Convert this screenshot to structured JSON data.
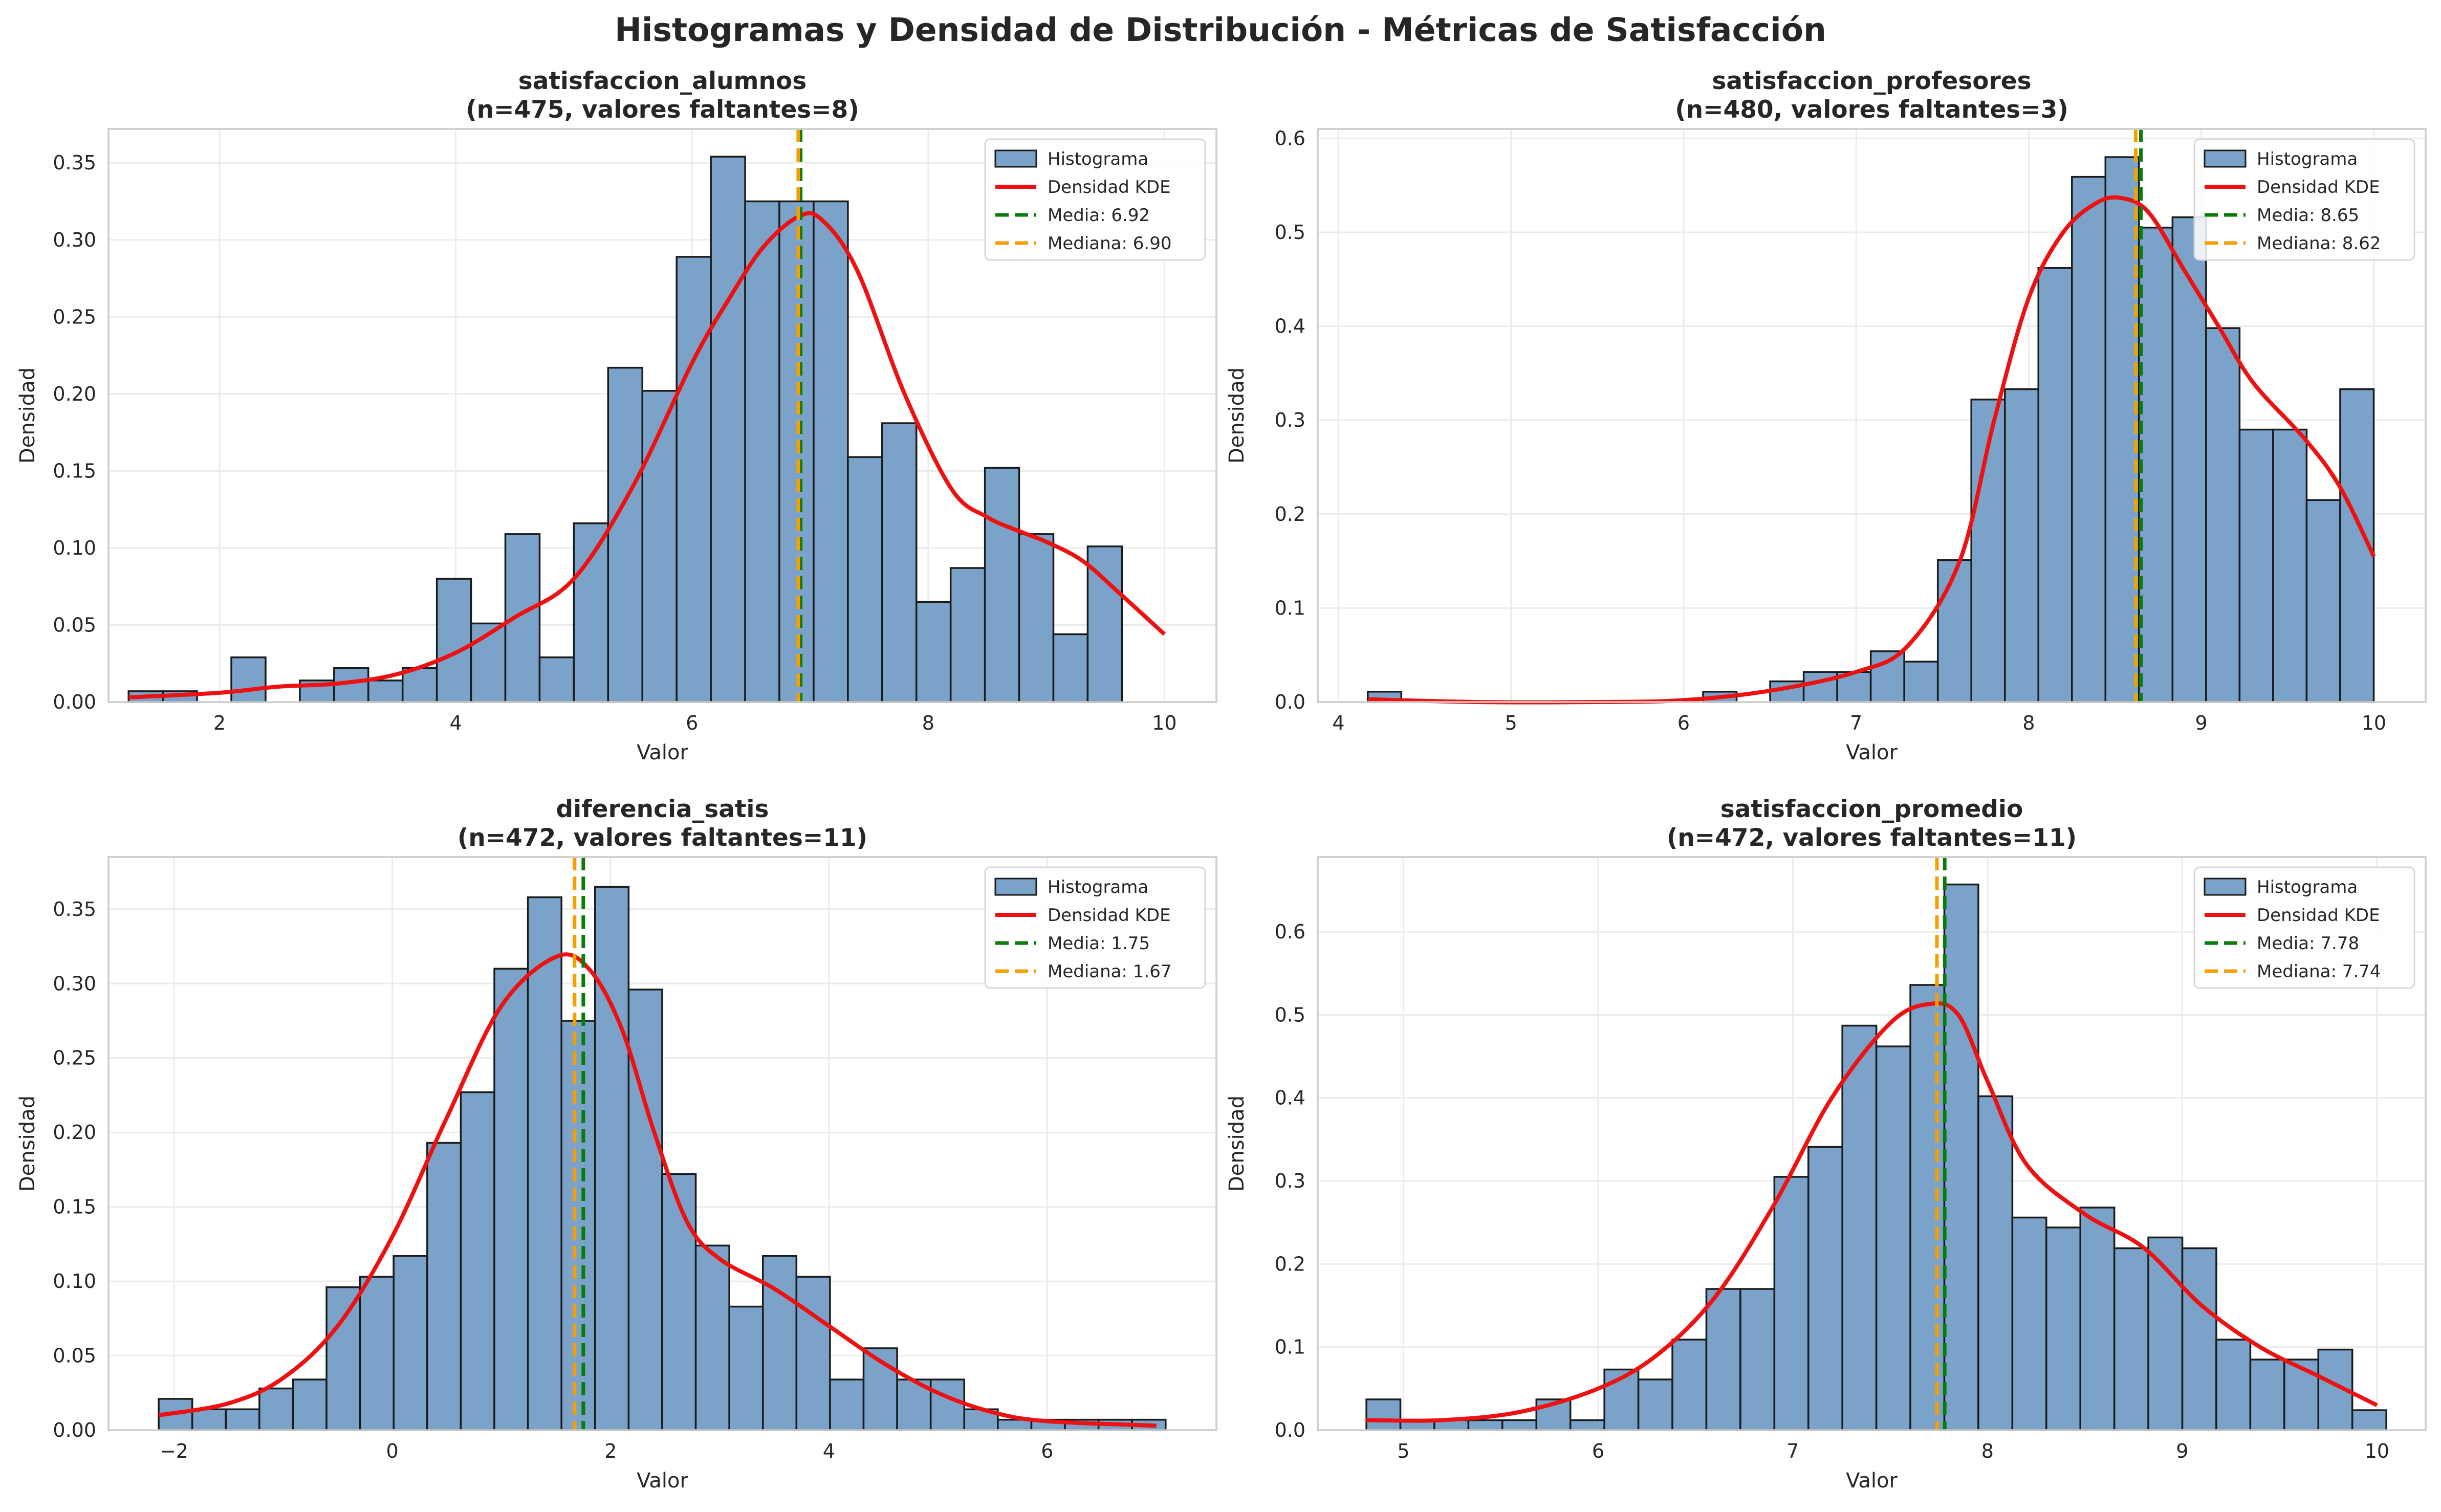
{
  "figure": {
    "title": "Histogramas y Densidad de Distribución - Métricas de Satisfacción"
  },
  "chart_data": [
    {
      "type": "bar",
      "title": "satisfaccion_alumnos\n(n=475, valores faltantes=8)",
      "title_lines": [
        "satisfaccion_alumnos",
        "(n=475, valores faltantes=8)"
      ],
      "xlabel": "Valor",
      "ylabel": "Densidad",
      "xlim": [
        1.06,
        10.44
      ],
      "ylim": [
        0,
        0.372
      ],
      "xticks": [
        2,
        4,
        6,
        8,
        10
      ],
      "yticks": [
        0.0,
        0.05,
        0.1,
        0.15,
        0.2,
        0.25,
        0.3,
        0.35
      ],
      "ytick_labels": [
        "0.00",
        "0.05",
        "0.10",
        "0.15",
        "0.20",
        "0.25",
        "0.30",
        "0.35"
      ],
      "bin_start": 1.23,
      "bin_width": 0.29,
      "values": [
        0.007,
        0.007,
        0.0,
        0.029,
        0.0,
        0.014,
        0.022,
        0.014,
        0.022,
        0.08,
        0.051,
        0.109,
        0.029,
        0.116,
        0.217,
        0.202,
        0.289,
        0.354,
        0.325,
        0.325,
        0.325,
        0.159,
        0.181,
        0.065,
        0.087,
        0.152,
        0.109,
        0.044,
        0.101
      ],
      "kde": {
        "x": [
          1.23,
          2.0,
          2.5,
          3.0,
          3.5,
          4.0,
          4.5,
          5.0,
          5.5,
          6.0,
          6.3,
          6.6,
          6.9,
          7.1,
          7.4,
          7.8,
          8.2,
          8.5,
          8.8,
          9.0,
          9.3,
          9.6,
          10.0
        ],
        "y": [
          0.003,
          0.006,
          0.01,
          0.012,
          0.018,
          0.032,
          0.055,
          0.08,
          0.14,
          0.22,
          0.26,
          0.295,
          0.315,
          0.313,
          0.28,
          0.2,
          0.138,
          0.12,
          0.11,
          0.104,
          0.092,
          0.072,
          0.044
        ]
      },
      "mean": 6.92,
      "median": 6.9,
      "legend": [
        "Histograma",
        "Densidad KDE",
        "Media: 6.92",
        "Mediana: 6.90"
      ],
      "legend_position": "upper right",
      "grid": true
    },
    {
      "type": "bar",
      "title": "satisfaccion_profesores\n(n=480, valores faltantes=3)",
      "title_lines": [
        "satisfaccion_profesores",
        "(n=480, valores faltantes=3)"
      ],
      "xlabel": "Valor",
      "ylabel": "Densidad",
      "xlim": [
        3.88,
        10.3
      ],
      "ylim": [
        0,
        0.61
      ],
      "xticks": [
        4,
        5,
        6,
        7,
        8,
        9,
        10
      ],
      "yticks": [
        0.0,
        0.1,
        0.2,
        0.3,
        0.4,
        0.5,
        0.6
      ],
      "ytick_labels": [
        "0.0",
        "0.1",
        "0.2",
        "0.3",
        "0.4",
        "0.5",
        "0.6"
      ],
      "bin_start": 4.17,
      "bin_width": 0.1943,
      "values": [
        0.011,
        0.0,
        0.0,
        0.0,
        0.0,
        0.0,
        0.0,
        0.0,
        0.0,
        0.0,
        0.011,
        0.0,
        0.022,
        0.032,
        0.032,
        0.054,
        0.043,
        0.151,
        0.322,
        0.333,
        0.462,
        0.559,
        0.58,
        0.505,
        0.516,
        0.398,
        0.29,
        0.29,
        0.215,
        0.333
      ],
      "kde": {
        "x": [
          4.17,
          4.8,
          5.5,
          6.0,
          6.5,
          7.0,
          7.3,
          7.6,
          7.8,
          8.0,
          8.2,
          8.4,
          8.55,
          8.7,
          8.9,
          9.1,
          9.3,
          9.6,
          9.8,
          10.0
        ],
        "y": [
          0.003,
          0.0,
          0.0,
          0.002,
          0.012,
          0.032,
          0.06,
          0.15,
          0.3,
          0.43,
          0.5,
          0.532,
          0.536,
          0.52,
          0.46,
          0.4,
          0.34,
          0.28,
          0.23,
          0.155
        ]
      },
      "mean": 8.65,
      "median": 8.62,
      "legend": [
        "Histograma",
        "Densidad KDE",
        "Media: 8.65",
        "Mediana: 8.62"
      ],
      "legend_position": "upper right",
      "grid": true
    },
    {
      "type": "bar",
      "title": "diferencia_satis\n(n=472, valores faltantes=11)",
      "title_lines": [
        "diferencia_satis",
        "(n=472, valores faltantes=11)"
      ],
      "xlabel": "Valor",
      "ylabel": "Densidad",
      "xlim": [
        -2.6,
        7.55
      ],
      "ylim": [
        0,
        0.385
      ],
      "xticks": [
        -2,
        0,
        2,
        4,
        6
      ],
      "xtick_labels": [
        "−2",
        "0",
        "2",
        "4",
        "6"
      ],
      "yticks": [
        0.0,
        0.05,
        0.1,
        0.15,
        0.2,
        0.25,
        0.3,
        0.35
      ],
      "ytick_labels": [
        "0.00",
        "0.05",
        "0.10",
        "0.15",
        "0.20",
        "0.25",
        "0.30",
        "0.35"
      ],
      "bin_start": -2.14,
      "bin_width": 0.3075,
      "values": [
        0.021,
        0.014,
        0.014,
        0.028,
        0.034,
        0.096,
        0.103,
        0.117,
        0.193,
        0.227,
        0.31,
        0.358,
        0.275,
        0.365,
        0.296,
        0.172,
        0.124,
        0.083,
        0.117,
        0.103,
        0.034,
        0.055,
        0.034,
        0.034,
        0.014,
        0.007,
        0.007,
        0.007,
        0.007,
        0.007
      ],
      "kde": {
        "x": [
          -2.14,
          -1.5,
          -1.0,
          -0.5,
          0.0,
          0.5,
          1.0,
          1.5,
          1.8,
          2.1,
          2.4,
          2.7,
          3.0,
          3.5,
          4.0,
          4.5,
          5.0,
          5.5,
          6.0,
          7.0
        ],
        "y": [
          0.01,
          0.018,
          0.035,
          0.07,
          0.13,
          0.21,
          0.285,
          0.318,
          0.31,
          0.27,
          0.2,
          0.14,
          0.115,
          0.095,
          0.07,
          0.045,
          0.025,
          0.012,
          0.006,
          0.003
        ]
      },
      "mean": 1.75,
      "median": 1.67,
      "legend": [
        "Histograma",
        "Densidad KDE",
        "Media: 1.75",
        "Mediana: 1.67"
      ],
      "legend_position": "upper right",
      "grid": true
    },
    {
      "type": "bar",
      "title": "satisfaccion_promedio\n(n=472, valores faltantes=11)",
      "title_lines": [
        "satisfaccion_promedio",
        "(n=472, valores faltantes=11)"
      ],
      "xlabel": "Valor",
      "ylabel": "Densidad",
      "xlim": [
        4.56,
        10.25
      ],
      "ylim": [
        0,
        0.69
      ],
      "xticks": [
        5,
        6,
        7,
        8,
        9,
        10
      ],
      "yticks": [
        0.0,
        0.1,
        0.2,
        0.3,
        0.4,
        0.5,
        0.6
      ],
      "ytick_labels": [
        "0.0",
        "0.1",
        "0.2",
        "0.3",
        "0.4",
        "0.5",
        "0.6"
      ],
      "bin_start": 4.81,
      "bin_width": 0.1746,
      "values": [
        0.037,
        0.012,
        0.012,
        0.012,
        0.012,
        0.037,
        0.012,
        0.073,
        0.061,
        0.109,
        0.17,
        0.17,
        0.305,
        0.341,
        0.487,
        0.462,
        0.536,
        0.657,
        0.402,
        0.256,
        0.244,
        0.268,
        0.219,
        0.232,
        0.219,
        0.109,
        0.085,
        0.085,
        0.097,
        0.024
      ],
      "kde": {
        "x": [
          4.81,
          5.2,
          5.6,
          6.0,
          6.3,
          6.6,
          6.9,
          7.2,
          7.5,
          7.7,
          7.85,
          8.0,
          8.2,
          8.5,
          8.8,
          9.1,
          9.4,
          9.7,
          10.0
        ],
        "y": [
          0.012,
          0.012,
          0.022,
          0.05,
          0.09,
          0.16,
          0.27,
          0.4,
          0.49,
          0.513,
          0.5,
          0.42,
          0.32,
          0.26,
          0.22,
          0.15,
          0.1,
          0.065,
          0.03
        ]
      },
      "mean": 7.78,
      "median": 7.74,
      "legend": [
        "Histograma",
        "Densidad KDE",
        "Media: 7.78",
        "Mediana: 7.74"
      ],
      "legend_position": "upper right",
      "grid": true
    }
  ]
}
